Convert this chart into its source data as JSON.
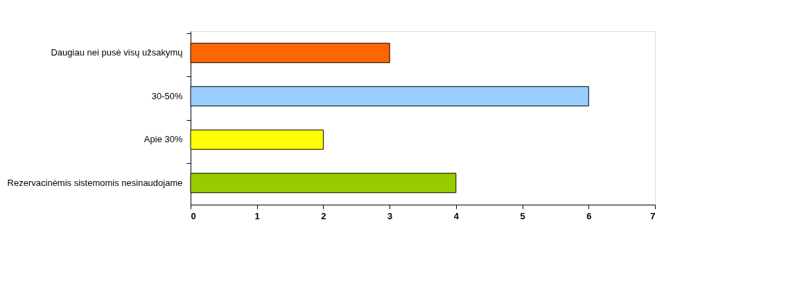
{
  "chart_data": {
    "type": "bar",
    "orientation": "horizontal",
    "categories": [
      "Daugiau nei pusė visų užsakymų",
      "30-50%",
      "Apie 30%",
      "Rezervacinėmis sistemomis nesinaudojame"
    ],
    "values": [
      3,
      6,
      2,
      4
    ],
    "colors": [
      "#ff6600",
      "#99ccff",
      "#ffff00",
      "#99cc00"
    ],
    "xlim": [
      0,
      7
    ],
    "xticks": [
      0,
      1,
      2,
      3,
      4,
      5,
      6,
      7
    ],
    "grid": false,
    "legend": false
  }
}
